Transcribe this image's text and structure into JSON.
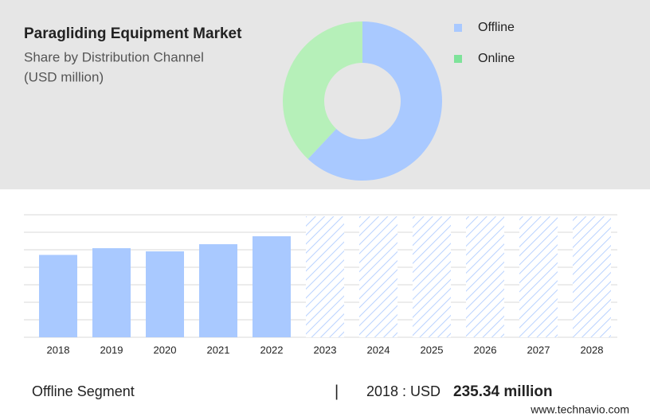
{
  "chart_data": [
    {
      "type": "pie",
      "title": "Paragliding Equipment Market",
      "subtitle": [
        "Share by Distribution Channel",
        "(USD million)"
      ],
      "categories": [
        "Offline",
        "Online"
      ],
      "values": [
        62,
        38
      ],
      "colors": [
        "#a9c9ff",
        "#b6f0b9"
      ],
      "legend_colors": [
        "#a9c9ff",
        "#7ee39a"
      ]
    },
    {
      "type": "bar",
      "categories": [
        "2018",
        "2019",
        "2020",
        "2021",
        "2022",
        "2023",
        "2024",
        "2025",
        "2026",
        "2027",
        "2028"
      ],
      "values": [
        235.34,
        254.5,
        245.5,
        265.9,
        288.6,
        null,
        null,
        null,
        null,
        null,
        null
      ],
      "color": "#a9c9ff",
      "ylim": [
        0,
        350
      ],
      "grid": true
    }
  ],
  "footer": {
    "segment": "Offline Segment",
    "year_label": "2018 : USD",
    "value": "235.34 million",
    "source": "www.technavio.com"
  }
}
